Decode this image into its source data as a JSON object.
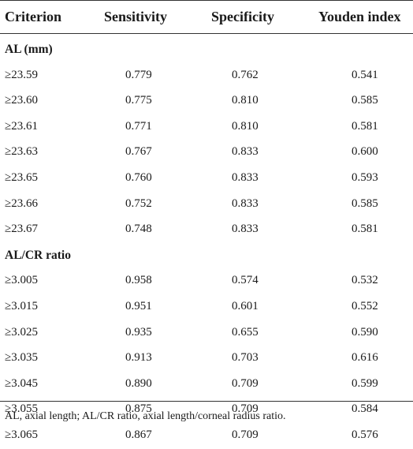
{
  "table": {
    "headers": {
      "criterion": "Criterion",
      "sensitivity": "Sensitivity",
      "specificity": "Specificity",
      "youden": "Youden index"
    },
    "sections": [
      {
        "label": "AL (mm)",
        "rows": [
          {
            "criterion": "≥23.59",
            "sensitivity": "0.779",
            "specificity": "0.762",
            "youden": "0.541"
          },
          {
            "criterion": "≥23.60",
            "sensitivity": "0.775",
            "specificity": "0.810",
            "youden": "0.585"
          },
          {
            "criterion": "≥23.61",
            "sensitivity": "0.771",
            "specificity": "0.810",
            "youden": "0.581"
          },
          {
            "criterion": "≥23.63",
            "sensitivity": "0.767",
            "specificity": "0.833",
            "youden": "0.600"
          },
          {
            "criterion": "≥23.65",
            "sensitivity": "0.760",
            "specificity": "0.833",
            "youden": "0.593"
          },
          {
            "criterion": "≥23.66",
            "sensitivity": "0.752",
            "specificity": "0.833",
            "youden": "0.585"
          },
          {
            "criterion": "≥23.67",
            "sensitivity": "0.748",
            "specificity": "0.833",
            "youden": "0.581"
          }
        ]
      },
      {
        "label": "AL/CR ratio",
        "rows": [
          {
            "criterion": "≥3.005",
            "sensitivity": "0.958",
            "specificity": "0.574",
            "youden": "0.532"
          },
          {
            "criterion": "≥3.015",
            "sensitivity": "0.951",
            "specificity": "0.601",
            "youden": "0.552"
          },
          {
            "criterion": "≥3.025",
            "sensitivity": "0.935",
            "specificity": "0.655",
            "youden": "0.590"
          },
          {
            "criterion": "≥3.035",
            "sensitivity": "0.913",
            "specificity": "0.703",
            "youden": "0.616"
          },
          {
            "criterion": "≥3.045",
            "sensitivity": "0.890",
            "specificity": "0.709",
            "youden": "0.599"
          },
          {
            "criterion": "≥3.055",
            "sensitivity": "0.875",
            "specificity": "0.709",
            "youden": "0.584"
          },
          {
            "criterion": "≥3.065",
            "sensitivity": "0.867",
            "specificity": "0.709",
            "youden": "0.576"
          }
        ]
      }
    ],
    "footnote": "AL, axial length; AL/CR ratio, axial length/corneal radius ratio."
  }
}
